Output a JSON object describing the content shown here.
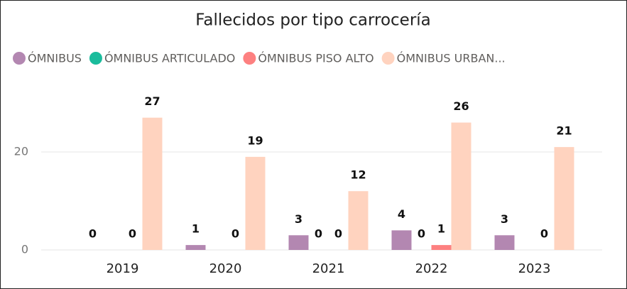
{
  "chart_data": {
    "type": "bar",
    "title": "Fallecidos por tipo carrocería",
    "categories": [
      "2019",
      "2020",
      "2021",
      "2022",
      "2023"
    ],
    "series": [
      {
        "name": "ÓMNIBUS",
        "color": "#b387b1",
        "values": [
          0,
          1,
          3,
          4,
          3
        ]
      },
      {
        "name": "ÓMNIBUS ARTICULADO",
        "color": "#1abc9c",
        "values": [
          null,
          null,
          0,
          0,
          null
        ]
      },
      {
        "name": "ÓMNIBUS PISO ALTO",
        "color": "#fd8080",
        "values": [
          0,
          0,
          0,
          1,
          0
        ]
      },
      {
        "name": "ÓMNIBUS URBAN...",
        "color": "#ffd3bf",
        "values": [
          27,
          19,
          12,
          26,
          21
        ]
      }
    ],
    "ylim": [
      0,
      30
    ],
    "yticks": [
      0,
      20
    ],
    "grid": true
  }
}
